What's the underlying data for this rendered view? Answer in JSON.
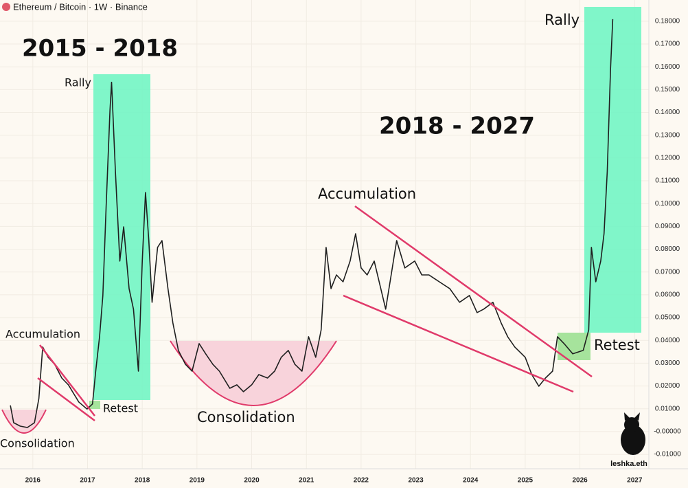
{
  "header": "Ethereum / Bitcoin · 1W · Binance",
  "chart_data": {
    "type": "line",
    "annotations": [
      "2015 - 2018",
      "2018 - 2027",
      "Rally",
      "Rally",
      "Accumulation",
      "Accumulation",
      "Retest",
      "Retest",
      "Consolidation",
      "Consolidation"
    ],
    "signature": "leshka.eth",
    "x": [
      2015.59,
      2015.65,
      2015.77,
      2015.9,
      2016.03,
      2016.11,
      2016.18,
      2016.28,
      2016.4,
      2016.53,
      2016.65,
      2016.84,
      2016.99,
      2017.09,
      2017.15,
      2017.22,
      2017.28,
      2017.34,
      2017.41,
      2017.44,
      2017.51,
      2017.59,
      2017.66,
      2017.76,
      2017.84,
      2017.93,
      2018.0,
      2018.06,
      2018.12,
      2018.18,
      2018.28,
      2018.36,
      2018.47,
      2018.56,
      2018.66,
      2018.79,
      2018.91,
      2019.04,
      2019.16,
      2019.29,
      2019.41,
      2019.6,
      2019.73,
      2019.85,
      2020.0,
      2020.13,
      2020.29,
      2020.42,
      2020.54,
      2020.67,
      2020.79,
      2020.92,
      2021.04,
      2021.17,
      2021.27,
      2021.36,
      2021.45,
      2021.55,
      2021.67,
      2021.8,
      2021.9,
      2022.0,
      2022.11,
      2022.24,
      2022.36,
      2022.45,
      2022.55,
      2022.65,
      2022.8,
      2022.98,
      2023.11,
      2023.24,
      2023.43,
      2023.62,
      2023.8,
      2023.98,
      2024.12,
      2024.24,
      2024.41,
      2024.56,
      2024.68,
      2024.81,
      2025.0,
      2025.12,
      2025.25,
      2025.37,
      2025.5,
      2025.59,
      2025.71,
      2025.87,
      2026.06,
      2026.16,
      2026.21,
      2026.29,
      2026.38,
      2026.44,
      2026.5,
      2026.56,
      2026.6
    ],
    "series": [
      {
        "name": "ETH/BTC",
        "color": "#1f1f1f",
        "values": [
          0.0115,
          0.0039,
          0.0024,
          0.0018,
          0.0039,
          0.0145,
          0.0371,
          0.0326,
          0.0295,
          0.0235,
          0.0205,
          0.013,
          0.0099,
          0.0121,
          0.0265,
          0.0416,
          0.0597,
          0.0989,
          0.1411,
          0.1532,
          0.114,
          0.0748,
          0.0898,
          0.0627,
          0.0537,
          0.0265,
          0.0748,
          0.1049,
          0.0838,
          0.0567,
          0.0808,
          0.0838,
          0.0627,
          0.0476,
          0.0356,
          0.0295,
          0.0265,
          0.0386,
          0.0341,
          0.0295,
          0.0265,
          0.019,
          0.0205,
          0.0175,
          0.0205,
          0.025,
          0.0235,
          0.0265,
          0.0326,
          0.0356,
          0.0295,
          0.0265,
          0.0416,
          0.0326,
          0.0446,
          0.0808,
          0.0627,
          0.0687,
          0.0657,
          0.0748,
          0.0868,
          0.0718,
          0.0687,
          0.0748,
          0.0627,
          0.0537,
          0.0687,
          0.0838,
          0.0718,
          0.0748,
          0.0687,
          0.0687,
          0.0657,
          0.0627,
          0.0567,
          0.0597,
          0.0522,
          0.0537,
          0.0567,
          0.0476,
          0.0416,
          0.0371,
          0.0326,
          0.025,
          0.0199,
          0.0235,
          0.0265,
          0.0416,
          0.0386,
          0.0341,
          0.0356,
          0.0446,
          0.0808,
          0.0657,
          0.0748,
          0.0868,
          0.114,
          0.1592,
          0.1809
        ]
      }
    ],
    "xlim": [
      2015.4,
      2027.26
    ],
    "xticks": [
      2016,
      2017,
      2018,
      2019,
      2020,
      2021,
      2022,
      2023,
      2024,
      2025,
      2026,
      2027
    ],
    "ylim": [
      -0.0157,
      0.1893
    ],
    "yticks": [
      {
        "value": -0.01,
        "label": "-0.01000"
      },
      {
        "value": 0,
        "label": "-0.00000"
      },
      {
        "value": 0.01,
        "label": "0.01000"
      },
      {
        "value": 0.02,
        "label": "0.02000"
      },
      {
        "value": 0.03,
        "label": "0.03000"
      },
      {
        "value": 0.04,
        "label": "0.04000"
      },
      {
        "value": 0.05,
        "label": "0.05000"
      },
      {
        "value": 0.06,
        "label": "0.06000"
      },
      {
        "value": 0.07,
        "label": "0.07000"
      },
      {
        "value": 0.08,
        "label": "0.08000"
      },
      {
        "value": 0.09,
        "label": "0.09000"
      },
      {
        "value": 0.1,
        "label": "0.10000"
      },
      {
        "value": 0.11,
        "label": "0.11000"
      },
      {
        "value": 0.12,
        "label": "0.12000"
      },
      {
        "value": 0.13,
        "label": "0.13000"
      },
      {
        "value": 0.14,
        "label": "0.14000"
      },
      {
        "value": 0.15,
        "label": "0.15000"
      },
      {
        "value": 0.16,
        "label": "0.16000"
      },
      {
        "value": 0.17,
        "label": "0.17000"
      },
      {
        "value": 0.18,
        "label": "0.18000"
      }
    ],
    "grid": true
  }
}
